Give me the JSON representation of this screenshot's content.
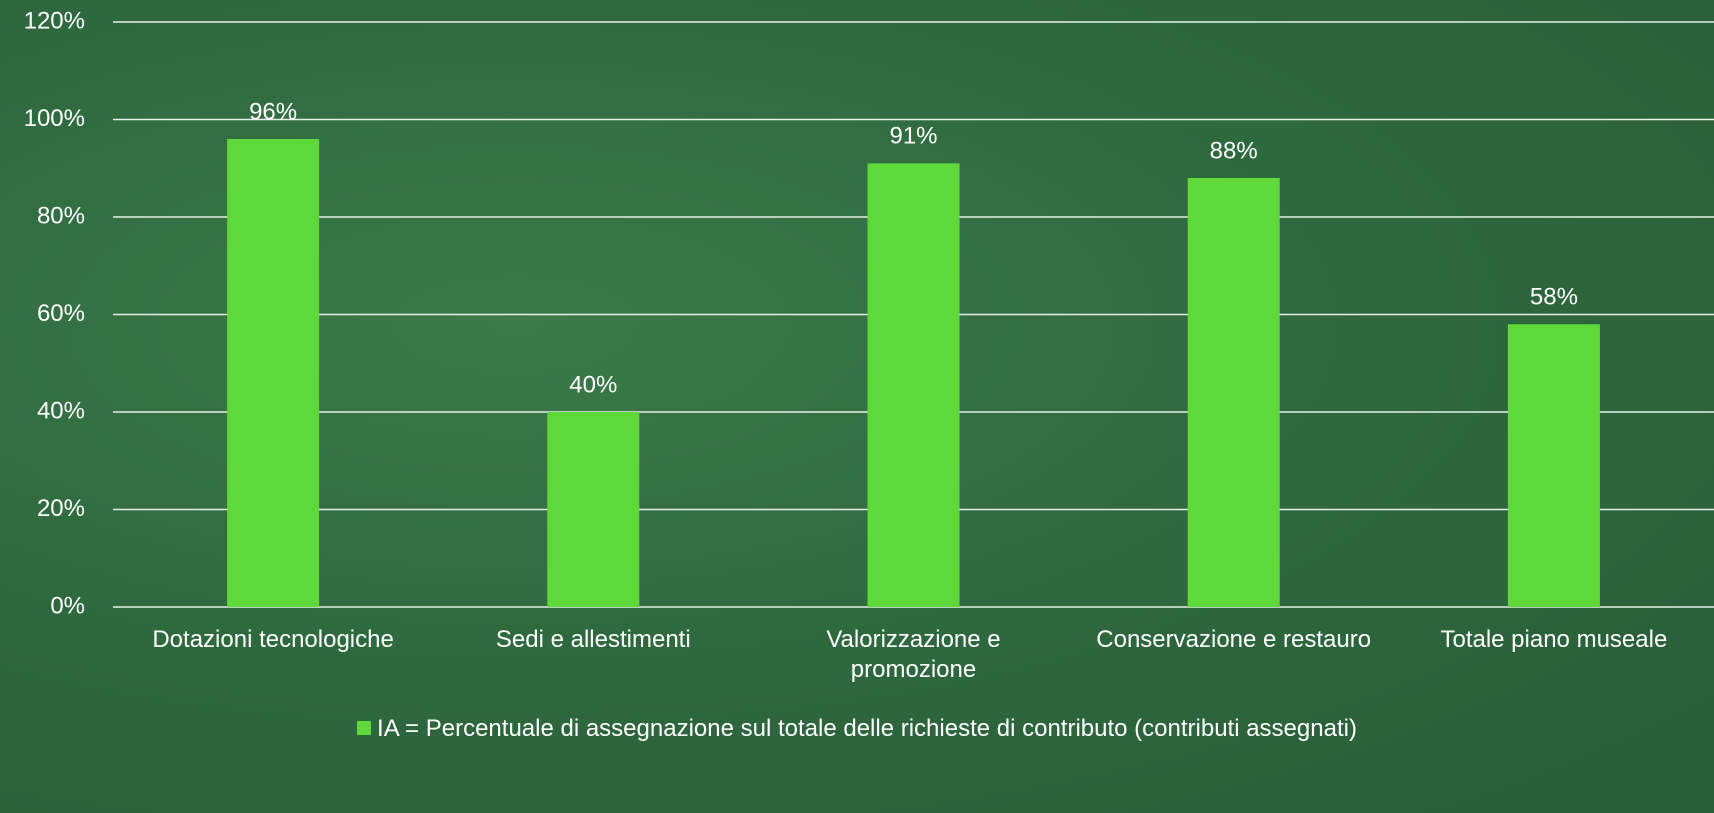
{
  "chart_data": {
    "type": "bar",
    "categories": [
      "Dotazioni tecnologiche",
      "Sedi e allestimenti",
      "Valorizzazione e promozione",
      "Conservazione e restauro",
      "Totale piano museale"
    ],
    "series": [
      {
        "name": "IA = Percentuale di assegnazione sul totale delle richieste di contributo (contributi assegnati)",
        "color": "#5fd93a",
        "values": [
          96,
          40,
          91,
          88,
          58
        ],
        "value_labels": [
          "96%",
          "40%",
          "91%",
          "88%",
          "58%"
        ]
      }
    ],
    "ylim": [
      0,
      120
    ],
    "yticks": [
      {
        "value": 0,
        "label": "0%"
      },
      {
        "value": 20,
        "label": "20%"
      },
      {
        "value": 40,
        "label": "40%"
      },
      {
        "value": 60,
        "label": "60%"
      },
      {
        "value": 80,
        "label": "80%"
      },
      {
        "value": 100,
        "label": "100%"
      },
      {
        "value": 120,
        "label": "120%"
      }
    ],
    "grid": true,
    "legend": "bottom"
  }
}
